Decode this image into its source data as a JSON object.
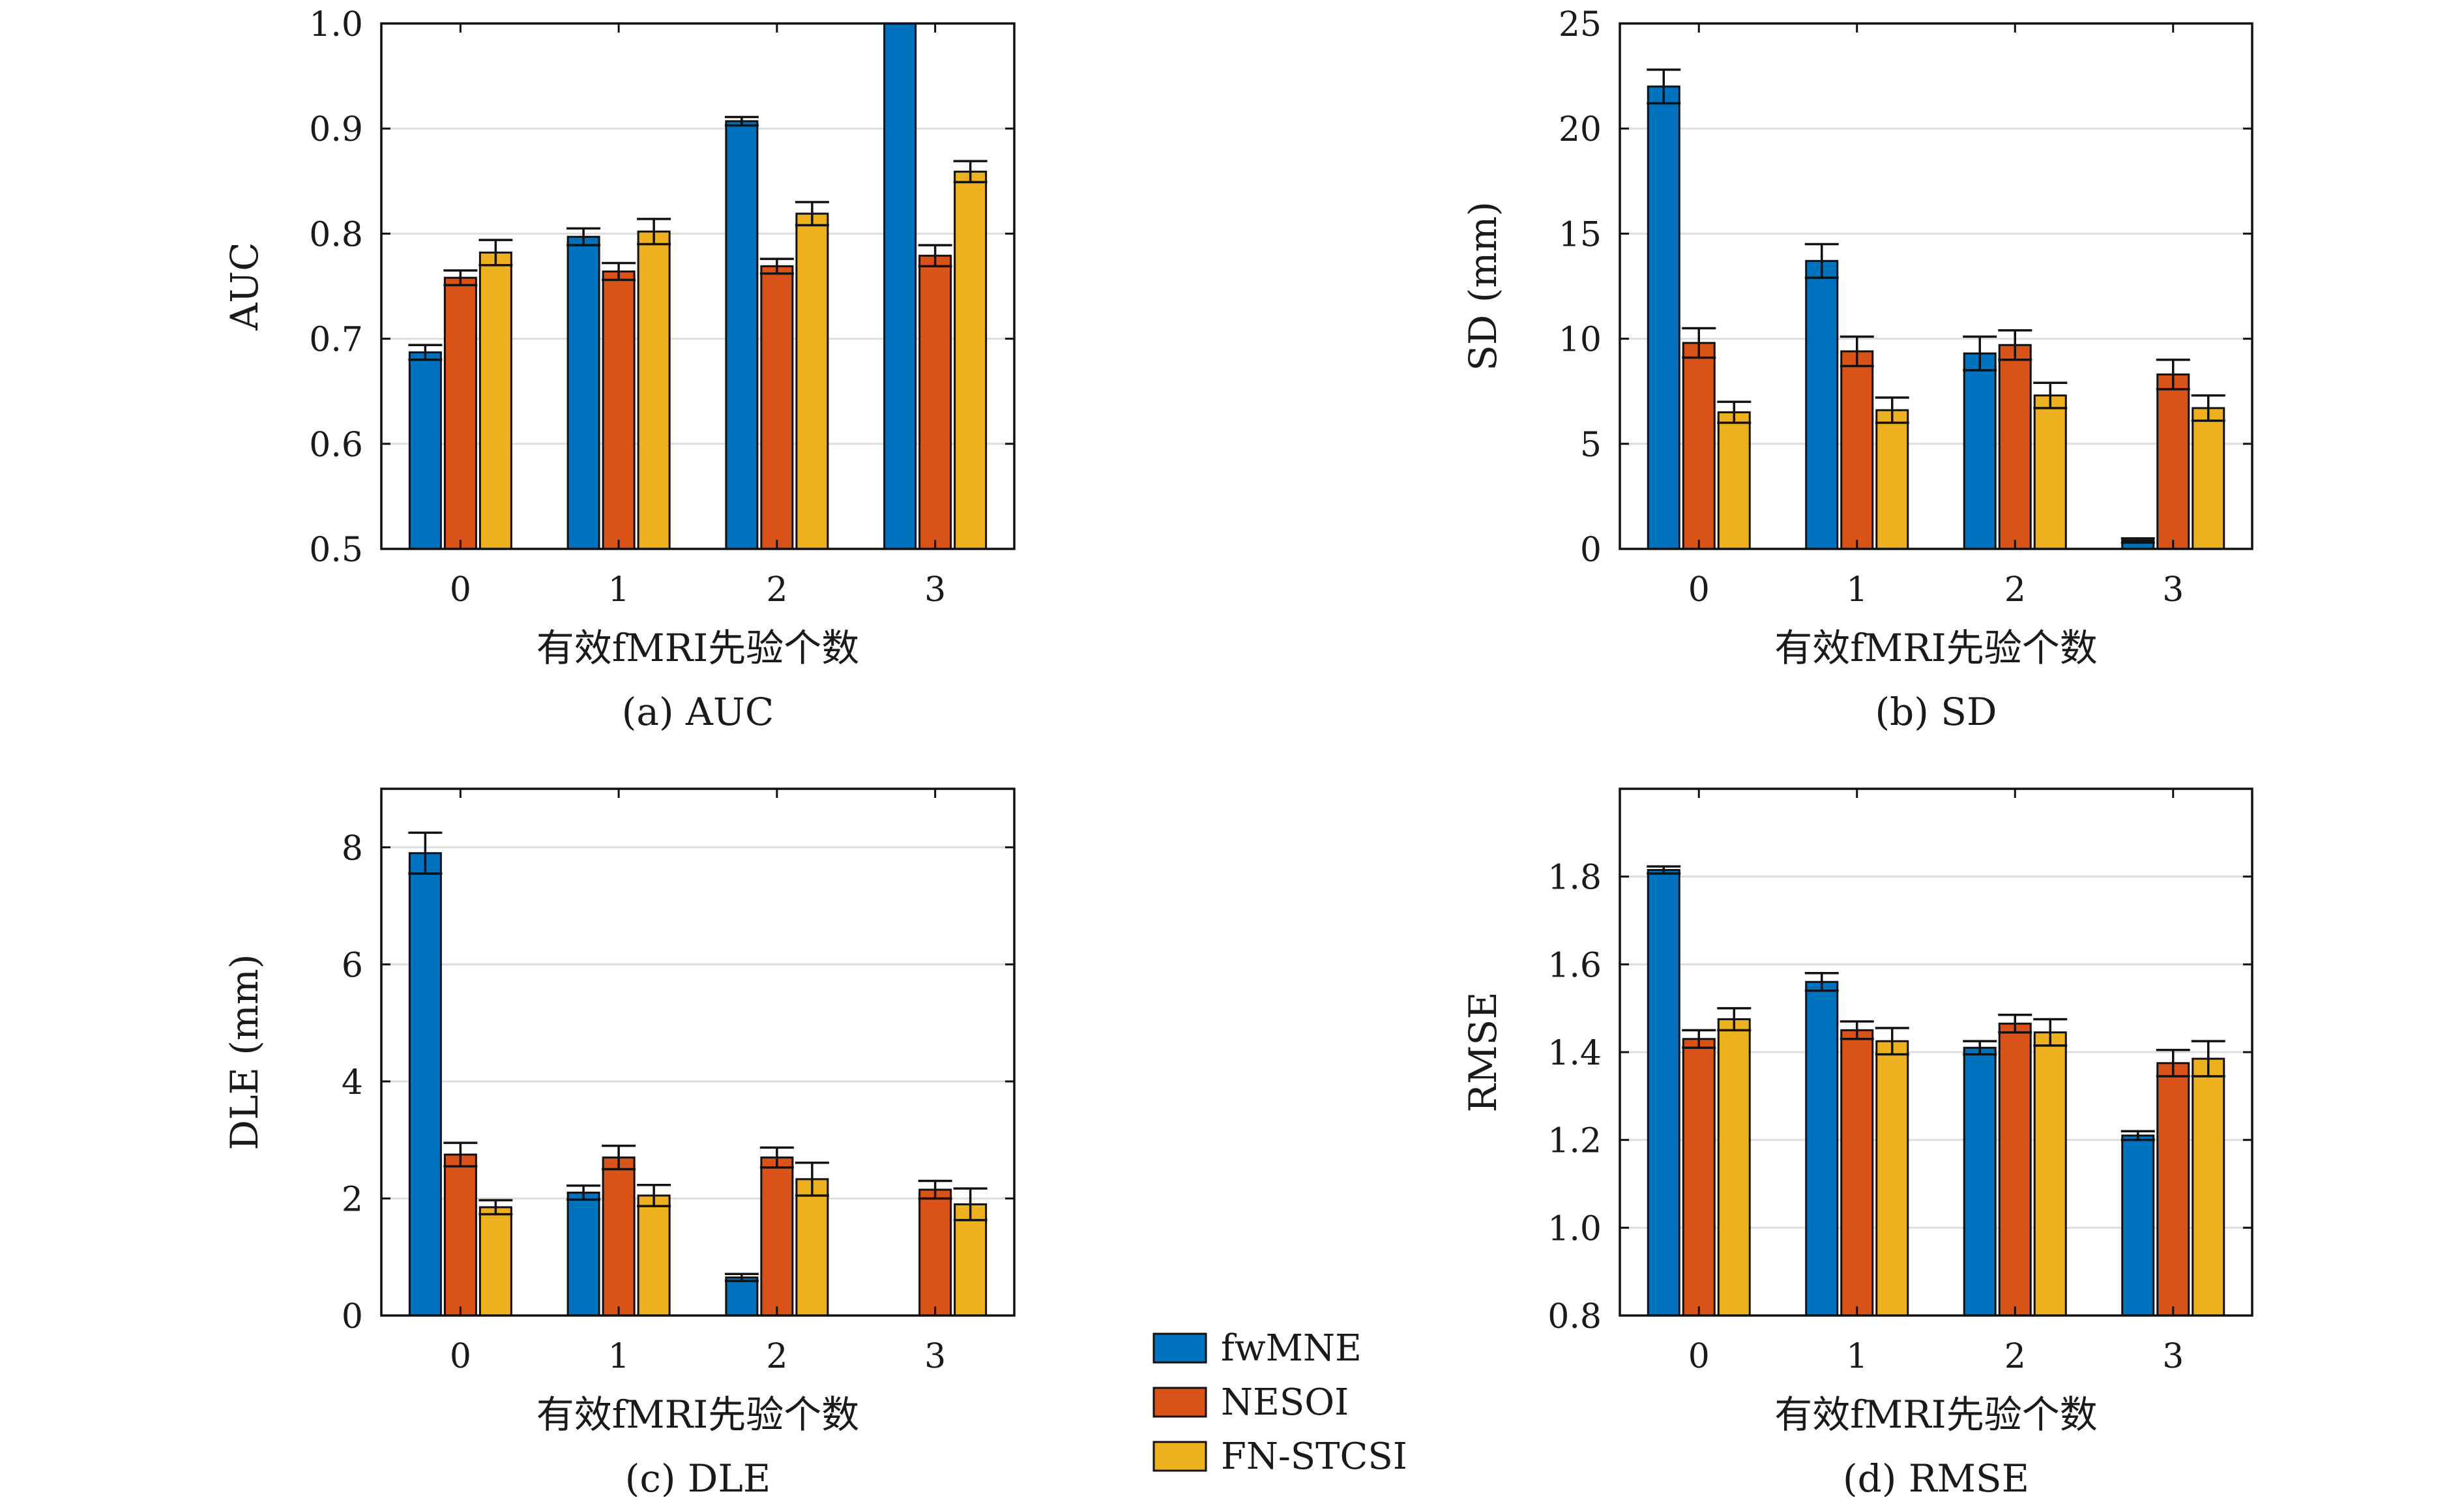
{
  "series": [
    {
      "name": "fwMNE",
      "color": "#0072BD"
    },
    {
      "name": "NESOI",
      "color": "#D95319"
    },
    {
      "name": "FN-STCSI",
      "color": "#EDB120"
    }
  ],
  "chart_data": [
    {
      "type": "bar",
      "caption": "(a) AUC",
      "xlabel": "有效fMRI先验个数",
      "ylabel": "AUC",
      "categories": [
        "0",
        "1",
        "2",
        "3"
      ],
      "ylim": [
        0.5,
        1.0
      ],
      "yticks": [
        "0.5",
        "0.6",
        "0.7",
        "0.8",
        "0.9",
        "1.0"
      ],
      "grid": true,
      "series": [
        {
          "name": "fwMNE",
          "values": [
            0.687,
            0.797,
            0.907,
            1.0
          ],
          "errors": [
            0.007,
            0.008,
            0.004,
            0.0
          ]
        },
        {
          "name": "NESOI",
          "values": [
            0.758,
            0.764,
            0.769,
            0.779
          ],
          "errors": [
            0.007,
            0.008,
            0.007,
            0.01
          ]
        },
        {
          "name": "FN-STCSI",
          "values": [
            0.782,
            0.802,
            0.819,
            0.859
          ],
          "errors": [
            0.012,
            0.012,
            0.011,
            0.01
          ]
        }
      ]
    },
    {
      "type": "bar",
      "caption": "(b) SD",
      "xlabel": "有效fMRI先验个数",
      "ylabel": "SD (mm)",
      "categories": [
        "0",
        "1",
        "2",
        "3"
      ],
      "ylim": [
        0,
        25
      ],
      "yticks": [
        "0",
        "5",
        "10",
        "15",
        "20",
        "25"
      ],
      "grid": true,
      "series": [
        {
          "name": "fwMNE",
          "values": [
            22.0,
            13.7,
            9.3,
            0.4
          ],
          "errors": [
            0.8,
            0.8,
            0.8,
            0.1
          ]
        },
        {
          "name": "NESOI",
          "values": [
            9.8,
            9.4,
            9.7,
            8.3
          ],
          "errors": [
            0.7,
            0.7,
            0.7,
            0.7
          ]
        },
        {
          "name": "FN-STCSI",
          "values": [
            6.5,
            6.6,
            7.3,
            6.7
          ],
          "errors": [
            0.5,
            0.6,
            0.6,
            0.6
          ]
        }
      ]
    },
    {
      "type": "bar",
      "caption": "(c) DLE",
      "xlabel": "有效fMRI先验个数",
      "ylabel": "DLE (mm)",
      "categories": [
        "0",
        "1",
        "2",
        "3"
      ],
      "ylim": [
        0,
        9
      ],
      "yticks": [
        "0",
        "2",
        "4",
        "6",
        "8"
      ],
      "grid": true,
      "series": [
        {
          "name": "fwMNE",
          "values": [
            7.9,
            2.1,
            0.65,
            0.0
          ],
          "errors": [
            0.35,
            0.12,
            0.06,
            0.0
          ]
        },
        {
          "name": "NESOI",
          "values": [
            2.75,
            2.7,
            2.7,
            2.15
          ],
          "errors": [
            0.2,
            0.2,
            0.17,
            0.15
          ]
        },
        {
          "name": "FN-STCSI",
          "values": [
            1.85,
            2.05,
            2.33,
            1.9
          ],
          "errors": [
            0.12,
            0.18,
            0.28,
            0.27
          ]
        }
      ]
    },
    {
      "type": "bar",
      "caption": "(d) RMSE",
      "xlabel": "有效fMRI先验个数",
      "ylabel": "RMSE",
      "categories": [
        "0",
        "1",
        "2",
        "3"
      ],
      "ylim": [
        0.8,
        2.0
      ],
      "yticks": [
        "0.8",
        "1.0",
        "1.2",
        "1.4",
        "1.6",
        "1.8"
      ],
      "grid": true,
      "series": [
        {
          "name": "fwMNE",
          "values": [
            1.815,
            1.56,
            1.41,
            1.21
          ],
          "errors": [
            0.008,
            0.02,
            0.015,
            0.01
          ]
        },
        {
          "name": "NESOI",
          "values": [
            1.43,
            1.45,
            1.465,
            1.375
          ],
          "errors": [
            0.02,
            0.02,
            0.02,
            0.03
          ]
        },
        {
          "name": "FN-STCSI",
          "values": [
            1.475,
            1.425,
            1.445,
            1.385
          ],
          "errors": [
            0.025,
            0.03,
            0.03,
            0.04
          ]
        }
      ]
    }
  ]
}
